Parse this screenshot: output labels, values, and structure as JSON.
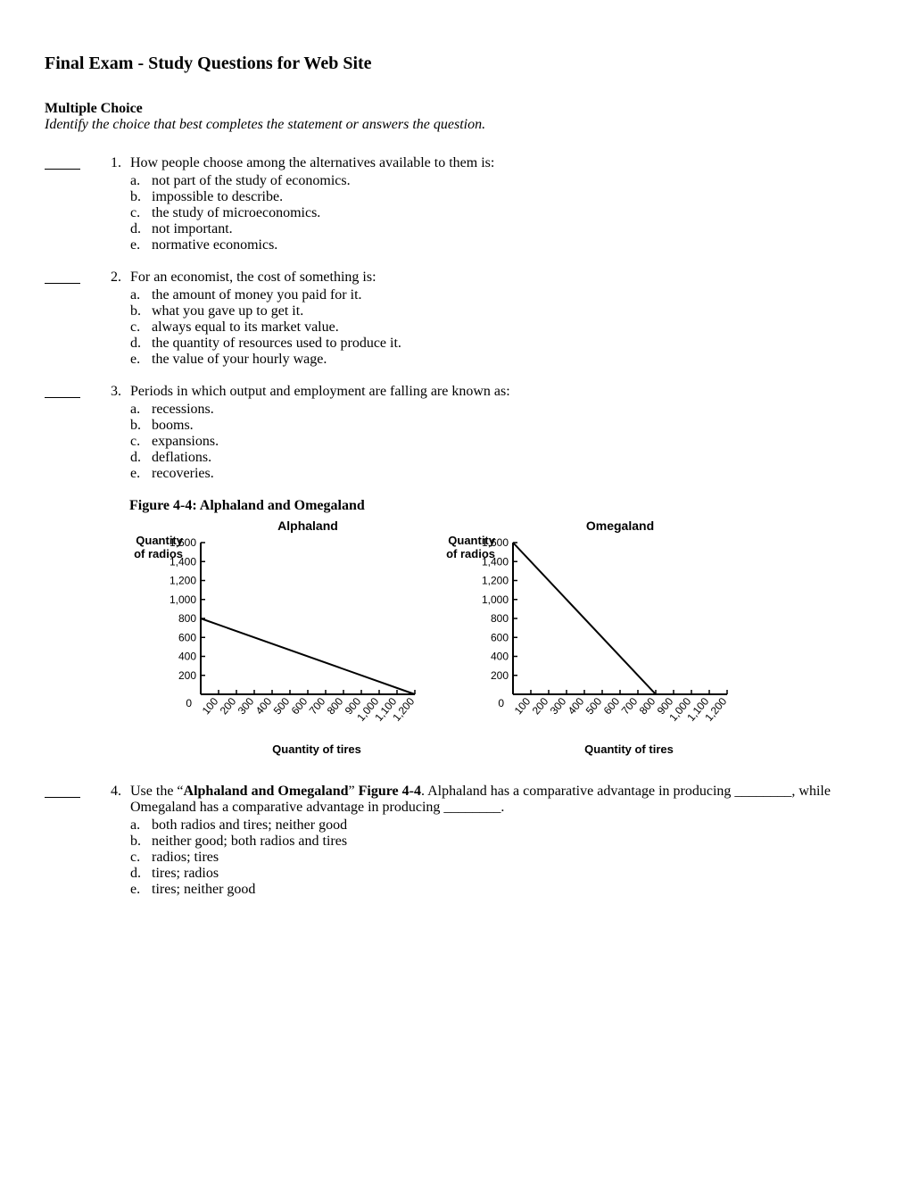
{
  "title": "Final Exam - Study Questions for Web Site",
  "section": "Multiple Choice",
  "instruction": "Identify the choice that best completes the statement or answers the question.",
  "questions": [
    {
      "num": "1.",
      "stem": "How people choose among the alternatives available to them is:",
      "choices": [
        {
          "l": "a.",
          "t": "not part of the study of economics."
        },
        {
          "l": "b.",
          "t": "impossible to describe."
        },
        {
          "l": "c.",
          "t": "the study of microeconomics."
        },
        {
          "l": "d.",
          "t": "not important."
        },
        {
          "l": "e.",
          "t": "normative economics."
        }
      ]
    },
    {
      "num": "2.",
      "stem": "For an economist, the cost of something is:",
      "choices": [
        {
          "l": "a.",
          "t": "the amount of money you paid for it."
        },
        {
          "l": "b.",
          "t": "what you gave up to get it."
        },
        {
          "l": "c.",
          "t": "always equal to its market value."
        },
        {
          "l": "d.",
          "t": "the quantity of resources used to produce it."
        },
        {
          "l": "e.",
          "t": "the value of your hourly wage."
        }
      ]
    },
    {
      "num": "3.",
      "stem": "Periods in which output and employment are falling are known as:",
      "choices": [
        {
          "l": "a.",
          "t": "recessions."
        },
        {
          "l": "b.",
          "t": "booms."
        },
        {
          "l": "c.",
          "t": "expansions."
        },
        {
          "l": "d.",
          "t": "deflations."
        },
        {
          "l": "e.",
          "t": "recoveries."
        }
      ]
    }
  ],
  "figure": {
    "title": "Figure 4-4: Alphaland and Omegaland",
    "chart_common": {
      "type": "line",
      "x_label": "Quantity of tires",
      "y_label_line1": "Quantity",
      "y_label_line2": "of radios",
      "x_ticks": [
        "100",
        "200",
        "300",
        "400",
        "500",
        "600",
        "700",
        "800",
        "900",
        "1,000",
        "1,100",
        "1,200"
      ],
      "y_ticks": [
        "200",
        "400",
        "600",
        "800",
        "1,000",
        "1,200",
        "1,400",
        "1,600"
      ],
      "zero": "0",
      "axis_color": "#000000",
      "line_color": "#000000",
      "tick_color": "#000000",
      "text_color": "#000000",
      "background": "#ffffff",
      "label_fontsize": 13,
      "tick_fontsize": 12,
      "title_fontsize": 14,
      "line_width": 2,
      "axis_width": 2,
      "xlim": [
        0,
        1200
      ],
      "ylim": [
        0,
        1600
      ]
    },
    "alphaland": {
      "title": "Alphaland",
      "line": {
        "x1": 0,
        "y1": 800,
        "x2": 1200,
        "y2": 0
      }
    },
    "omegaland": {
      "title": "Omegaland",
      "line": {
        "x1": 0,
        "y1": 1600,
        "x2": 800,
        "y2": 0
      }
    }
  },
  "q4": {
    "num": "4.",
    "pre": "Use the “",
    "bold1": "Alphaland and Omegaland",
    "mid1": "” ",
    "bold2": "Figure 4-4",
    "post1": ". Alphaland has a comparative advantage in producing ________, while Omegaland has a comparative advantage in producing ________.",
    "choices": [
      {
        "l": "a.",
        "t": "both radios and tires; neither good"
      },
      {
        "l": "b.",
        "t": "neither good; both radios and tires"
      },
      {
        "l": "c.",
        "t": "radios; tires"
      },
      {
        "l": "d.",
        "t": "tires; radios"
      },
      {
        "l": "e.",
        "t": "tires; neither good"
      }
    ]
  }
}
